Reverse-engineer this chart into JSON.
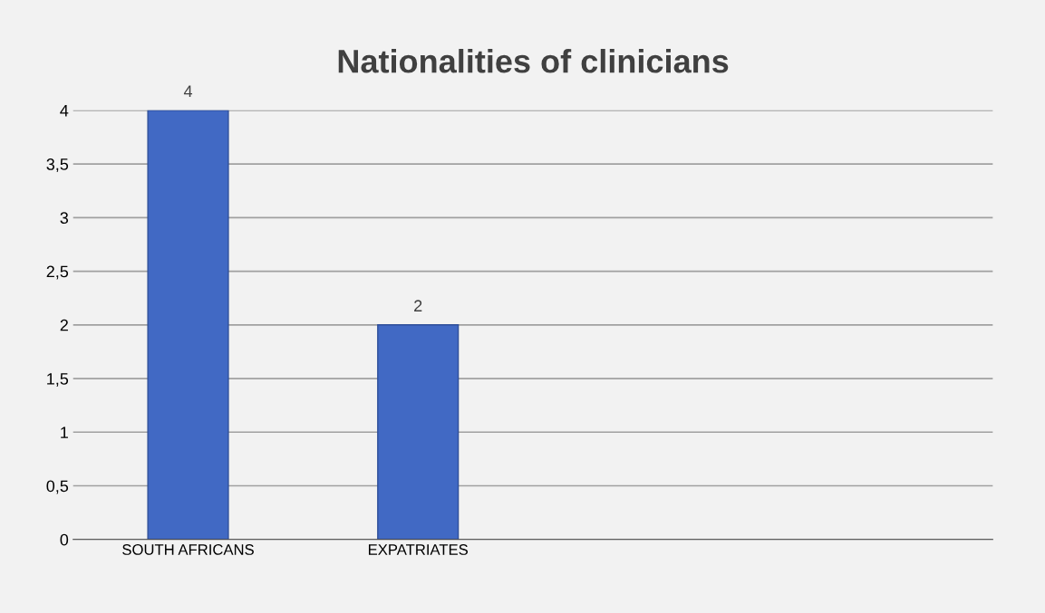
{
  "chart_data": {
    "type": "bar",
    "title": "Nationalities of clinicians",
    "categories": [
      "SOUTH AFRICANS",
      "EXPATRIATES"
    ],
    "values": [
      4,
      2
    ],
    "color": "#4169c4",
    "ylim": [
      0,
      4
    ],
    "yticks": [
      0,
      {
        "value": 0.5,
        "label": "0,5"
      },
      1,
      {
        "value": 1.5,
        "label": "1,5"
      },
      2,
      {
        "value": 2.5,
        "label": "2,5"
      },
      3,
      {
        "value": 3.5,
        "label": "3,5"
      },
      4
    ],
    "grid": "y",
    "data_labels": true
  }
}
